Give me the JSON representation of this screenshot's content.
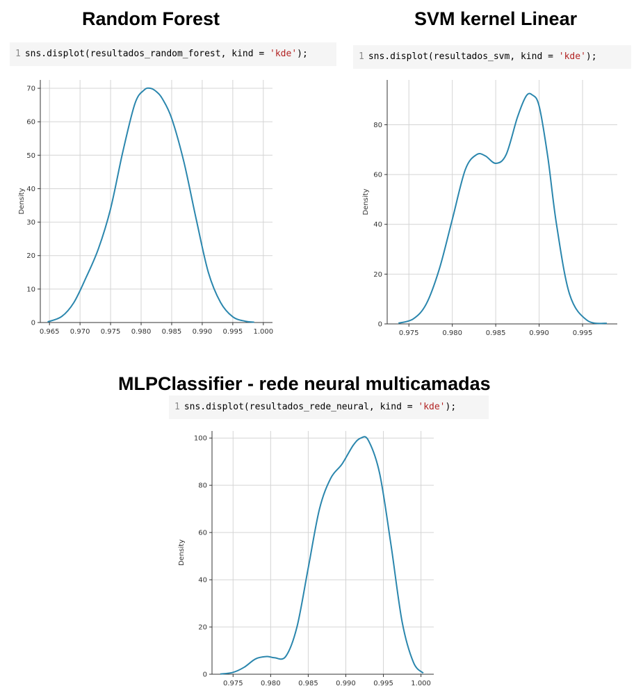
{
  "panels": [
    {
      "heading": "Random Forest",
      "code": {
        "line_no": "1",
        "prefix": "sns.displot(resultados_random_forest, kind = ",
        "arg": "'kde'",
        "suffix": ");"
      }
    },
    {
      "heading": "SVM kernel Linear",
      "code": {
        "line_no": "1",
        "prefix": "sns.displot(resultados_svm, kind = ",
        "arg": "'kde'",
        "suffix": ");"
      }
    },
    {
      "heading": "MLPClassifier - rede neural multicamadas",
      "code": {
        "line_no": "1",
        "prefix": "sns.displot(resultados_rede_neural, kind = ",
        "arg": "'kde'",
        "suffix": ");"
      }
    }
  ],
  "colors": {
    "line": "#2a86ad",
    "grid": "#d4d4d4",
    "axis": "#333333"
  },
  "chart_data": [
    {
      "type": "line",
      "title": "",
      "xlabel": "",
      "ylabel": "Density",
      "grid": true,
      "xlim": [
        0.9635,
        1.0015
      ],
      "ylim": [
        0,
        72.5
      ],
      "xticks": [
        0.965,
        0.97,
        0.975,
        0.98,
        0.985,
        0.99,
        0.995,
        1.0
      ],
      "xtick_labels": [
        "0.965",
        "0.970",
        "0.975",
        "0.980",
        "0.985",
        "0.990",
        "0.995",
        "1.000"
      ],
      "yticks": [
        0,
        10,
        20,
        30,
        40,
        50,
        60,
        70
      ],
      "ytick_labels": [
        "0",
        "10",
        "20",
        "30",
        "40",
        "50",
        "60",
        "70"
      ],
      "series": [
        {
          "x": [
            0.9647,
            0.967,
            0.969,
            0.971,
            0.973,
            0.975,
            0.977,
            0.979,
            0.9805,
            0.9815,
            0.9825,
            0.9835,
            0.985,
            0.987,
            0.989,
            0.991,
            0.993,
            0.995,
            0.997,
            0.9985
          ],
          "y": [
            0.2,
            1.8,
            6.0,
            13.5,
            22.0,
            34.0,
            51.0,
            65.5,
            69.5,
            70.0,
            69.0,
            66.8,
            61.0,
            48.0,
            31.0,
            15.0,
            6.0,
            1.7,
            0.4,
            0.1
          ]
        }
      ]
    },
    {
      "type": "line",
      "title": "",
      "xlabel": "",
      "ylabel": "Density",
      "grid": true,
      "xlim": [
        0.9725,
        0.999
      ],
      "ylim": [
        0,
        98
      ],
      "xticks": [
        0.975,
        0.98,
        0.985,
        0.99,
        0.995
      ],
      "xtick_labels": [
        "0.975",
        "0.980",
        "0.985",
        "0.990",
        "0.995"
      ],
      "yticks": [
        0,
        20,
        40,
        60,
        80
      ],
      "ytick_labels": [
        "0",
        "20",
        "40",
        "60",
        "80"
      ],
      "series": [
        {
          "x": [
            0.9738,
            0.9755,
            0.977,
            0.9785,
            0.98,
            0.9815,
            0.9828,
            0.9838,
            0.985,
            0.9862,
            0.9875,
            0.9885,
            0.9892,
            0.99,
            0.991,
            0.992,
            0.9935,
            0.9955,
            0.9978
          ],
          "y": [
            0.3,
            2.0,
            8.0,
            22.0,
            42.0,
            62.0,
            68.0,
            67.5,
            64.5,
            68.0,
            83.0,
            91.5,
            92.0,
            87.5,
            67.0,
            40.0,
            12.0,
            1.5,
            0.2
          ]
        }
      ]
    },
    {
      "type": "line",
      "title": "",
      "xlabel": "",
      "ylabel": "Density",
      "grid": true,
      "xlim": [
        0.9722,
        1.0017
      ],
      "ylim": [
        0,
        103
      ],
      "xticks": [
        0.975,
        0.98,
        0.985,
        0.99,
        0.995,
        1.0
      ],
      "xtick_labels": [
        "0.975",
        "0.980",
        "0.985",
        "0.990",
        "0.995",
        "1.000"
      ],
      "yticks": [
        0,
        20,
        40,
        60,
        80,
        100
      ],
      "ytick_labels": [
        "0",
        "20",
        "40",
        "60",
        "80",
        "100"
      ],
      "series": [
        {
          "x": [
            0.9733,
            0.975,
            0.9765,
            0.978,
            0.9795,
            0.9805,
            0.982,
            0.9835,
            0.985,
            0.9865,
            0.988,
            0.9895,
            0.991,
            0.992,
            0.993,
            0.9945,
            0.996,
            0.9975,
            0.999,
            1.0003
          ],
          "y": [
            0.1,
            0.8,
            3.0,
            6.5,
            7.5,
            7.0,
            7.5,
            20.0,
            45.0,
            70.0,
            83.0,
            89.0,
            97.0,
            100.0,
            99.0,
            85.0,
            55.0,
            22.0,
            5.0,
            0.5
          ]
        }
      ]
    }
  ]
}
